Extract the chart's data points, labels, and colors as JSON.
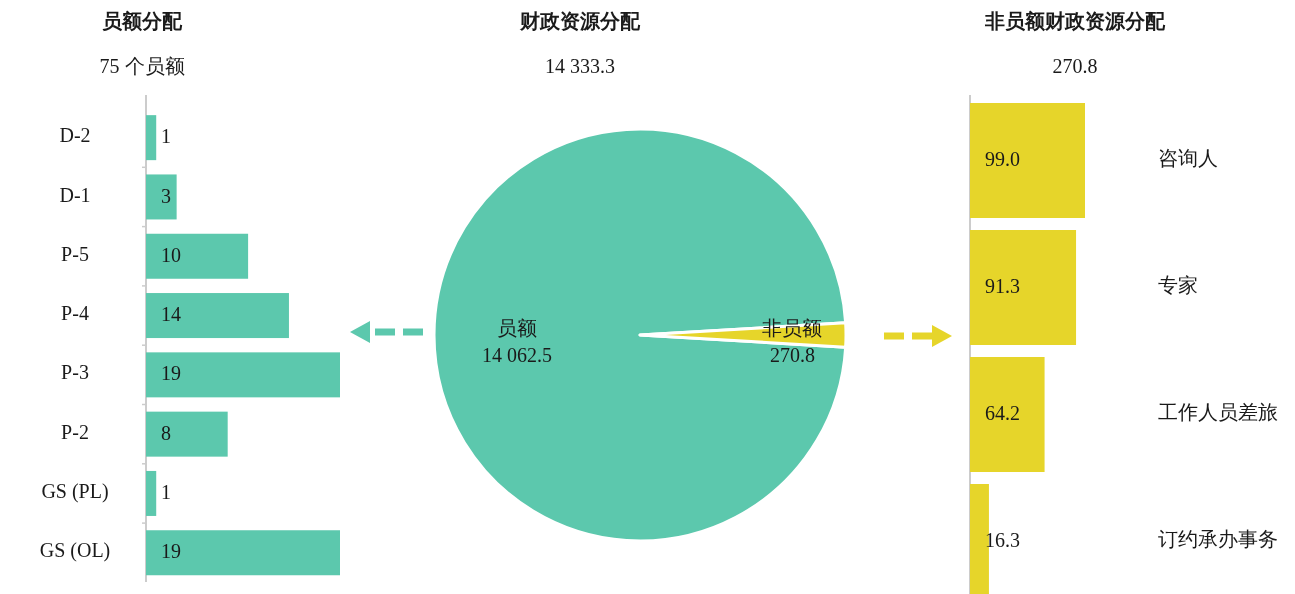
{
  "chart_data": [
    {
      "type": "bar",
      "orientation": "horizontal",
      "title": "员额分配",
      "subtitle": "75 个员额",
      "categories": [
        "D-2",
        "D-1",
        "P-5",
        "P-4",
        "P-3",
        "P-2",
        "GS (PL)",
        "GS (OL)"
      ],
      "values": [
        1,
        3,
        10,
        14,
        19,
        8,
        1,
        19
      ],
      "color": "#5cc8ad",
      "xlim": [
        0,
        19
      ],
      "data_labels": true
    },
    {
      "type": "pie",
      "title": "财政资源分配",
      "subtitle": "14 333.3",
      "categories": [
        "员额",
        "非员额"
      ],
      "values": [
        14062.5,
        270.8
      ],
      "colors": [
        "#5cc8ad",
        "#e6d52a"
      ],
      "value_labels": [
        "14 062.5",
        "270.8"
      ]
    },
    {
      "type": "bar",
      "orientation": "horizontal",
      "title": "非员额财政资源分配",
      "subtitle": "270.8",
      "categories": [
        "咨询人",
        "专家",
        "工作人员差旅",
        "订约承办事务"
      ],
      "values": [
        99.0,
        91.3,
        64.2,
        16.3
      ],
      "color": "#e6d52a",
      "xlim": [
        0,
        99.0
      ],
      "value_labels": [
        "99.0",
        "91.3",
        "64.2",
        "16.3"
      ]
    }
  ]
}
